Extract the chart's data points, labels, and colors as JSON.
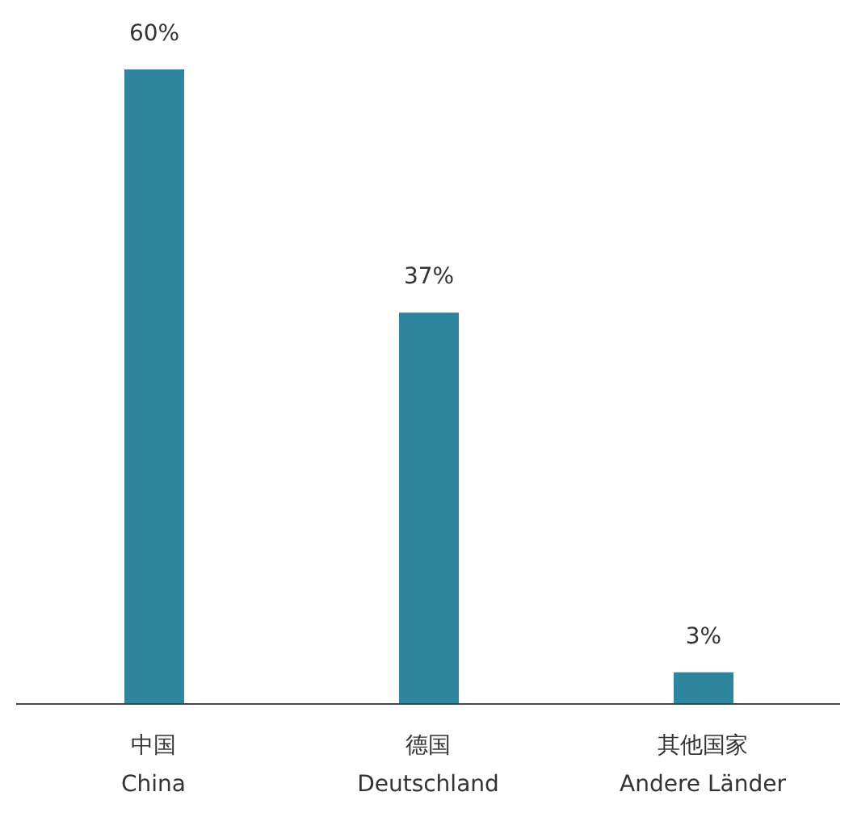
{
  "chart_data": {
    "type": "bar",
    "categories": [
      "中国\nChina",
      "德国\nDeutschland",
      "其他国家\nAndere Länder"
    ],
    "values": [
      60,
      37,
      3
    ],
    "value_labels": [
      "60%",
      "37%",
      "3%"
    ],
    "color": "#2e869e"
  }
}
